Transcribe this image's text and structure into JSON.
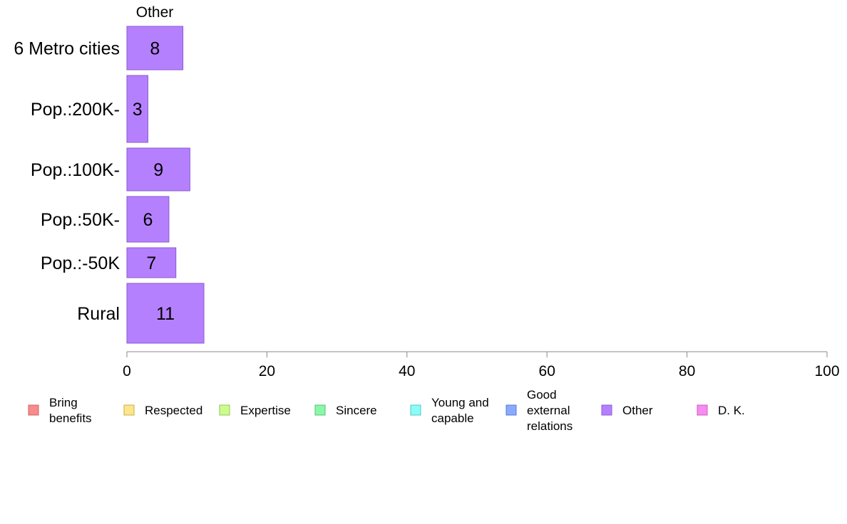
{
  "chart_data": {
    "type": "bar",
    "orientation": "horizontal",
    "stacked": true,
    "series_title": "Other",
    "categories": [
      "6 Metro cities",
      "Pop.:200K-",
      "Pop.:100K-",
      "Pop.:50K-",
      "Pop.:-50K",
      "Rural"
    ],
    "series": [
      {
        "name": "Other",
        "values": [
          8,
          3,
          9,
          6,
          7,
          11
        ],
        "color": "#b580fe"
      }
    ],
    "xlim": [
      0,
      100
    ],
    "xticks": [
      0,
      20,
      40,
      60,
      80,
      100
    ],
    "grid": false,
    "legend": {
      "placement": "bottom",
      "items": [
        {
          "label": "Bring benefits",
          "lines": [
            "Bring",
            "benefits"
          ],
          "color": "#f88b8b",
          "stroke": "#d06060"
        },
        {
          "label": "Respected",
          "lines": [
            "Respected"
          ],
          "color": "#fde68a",
          "stroke": "#c8ad4a"
        },
        {
          "label": "Expertise",
          "lines": [
            "Expertise"
          ],
          "color": "#ccfd8a",
          "stroke": "#96c45a"
        },
        {
          "label": "Sincere",
          "lines": [
            "Sincere"
          ],
          "color": "#8af8a8",
          "stroke": "#55c078"
        },
        {
          "label": "Young and capable",
          "lines": [
            "Young and",
            "capable"
          ],
          "color": "#8afdf8",
          "stroke": "#50c6c0"
        },
        {
          "label": "Good external relations",
          "lines": [
            "Good",
            "external",
            "relations"
          ],
          "color": "#8aaafd",
          "stroke": "#5a7ad0"
        },
        {
          "label": "Other",
          "lines": [
            "Other"
          ],
          "color": "#b580fe",
          "stroke": "#8a5ad0"
        },
        {
          "label": "D. K.",
          "lines": [
            "D. K."
          ],
          "color": "#f88bef",
          "stroke": "#c85ac0"
        }
      ]
    }
  }
}
